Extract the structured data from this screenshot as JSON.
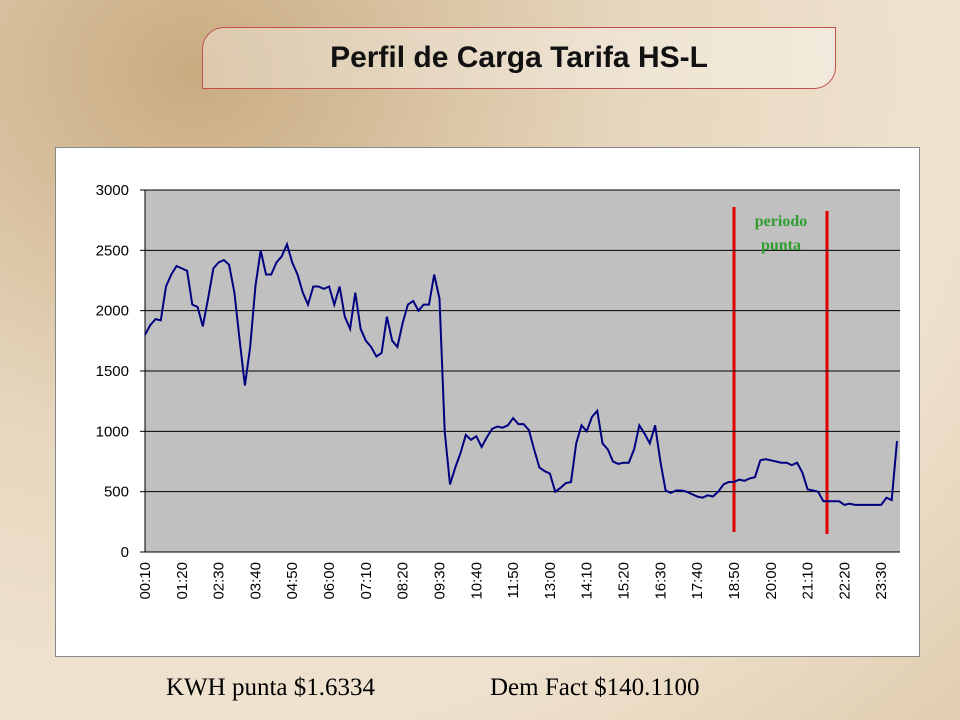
{
  "chart_data": {
    "type": "line",
    "title": "Perfil de Carga Tarifa HS-L",
    "annotation": "periodo punta",
    "categories": [
      "00:10",
      null,
      null,
      null,
      null,
      null,
      null,
      "01:20",
      null,
      null,
      null,
      null,
      null,
      null,
      "02:30",
      null,
      null,
      null,
      null,
      null,
      null,
      "03:40",
      null,
      null,
      null,
      null,
      null,
      null,
      "04:50",
      null,
      null,
      null,
      null,
      null,
      null,
      "06:00",
      null,
      null,
      null,
      null,
      null,
      null,
      "07:10",
      null,
      null,
      null,
      null,
      null,
      null,
      "08:20",
      null,
      null,
      null,
      null,
      null,
      null,
      "09:30",
      null,
      null,
      null,
      null,
      null,
      null,
      "10:40",
      null,
      null,
      null,
      null,
      null,
      null,
      "11:50",
      null,
      null,
      null,
      null,
      null,
      null,
      "13:00",
      null,
      null,
      null,
      null,
      null,
      null,
      "14:10",
      null,
      null,
      null,
      null,
      null,
      null,
      "15:20",
      null,
      null,
      null,
      null,
      null,
      null,
      "16:30",
      null,
      null,
      null,
      null,
      null,
      null,
      "17:40",
      null,
      null,
      null,
      null,
      null,
      null,
      "18:50",
      null,
      null,
      null,
      null,
      null,
      null,
      "20:00",
      null,
      null,
      null,
      null,
      null,
      null,
      "21:10",
      null,
      null,
      null,
      null,
      null,
      null,
      "22:20",
      null,
      null,
      null,
      null,
      null,
      null,
      "23:30",
      null,
      null,
      null
    ],
    "values": [
      1800,
      1880,
      1930,
      1920,
      2200,
      2300,
      2370,
      2350,
      2330,
      2050,
      2030,
      1870,
      2100,
      2350,
      2400,
      2420,
      2380,
      2150,
      1750,
      1380,
      1700,
      2200,
      2500,
      2300,
      2300,
      2400,
      2450,
      2550,
      2400,
      2300,
      2150,
      2050,
      2200,
      2200,
      2180,
      2200,
      2050,
      2200,
      1950,
      1850,
      2150,
      1850,
      1750,
      1700,
      1620,
      1650,
      1950,
      1750,
      1700,
      1900,
      2050,
      2080,
      2000,
      2050,
      2050,
      2300,
      2100,
      1000,
      560,
      700,
      820,
      970,
      930,
      960,
      870,
      950,
      1020,
      1040,
      1030,
      1050,
      1110,
      1060,
      1060,
      1010,
      850,
      700,
      670,
      650,
      500,
      530,
      570,
      580,
      900,
      1050,
      1000,
      1120,
      1170,
      900,
      850,
      750,
      730,
      740,
      740,
      850,
      1050,
      980,
      900,
      1050,
      750,
      510,
      490,
      510,
      510,
      500,
      480,
      460,
      450,
      470,
      460,
      500,
      560,
      580,
      580,
      600,
      590,
      610,
      620,
      760,
      770,
      760,
      750,
      740,
      740,
      720,
      740,
      660,
      520,
      510,
      500,
      420,
      420,
      420,
      420,
      390,
      400,
      390,
      390,
      390,
      390,
      390,
      390,
      450,
      430,
      920
    ],
    "color": "#000080",
    "ylim": [
      0,
      3000
    ],
    "yticks": [
      0,
      500,
      1000,
      1500,
      2000,
      2500,
      3000
    ],
    "grid": true
  },
  "footer": [
    "KWH punta $1.6334",
    "Dem Fact $140.1100"
  ]
}
